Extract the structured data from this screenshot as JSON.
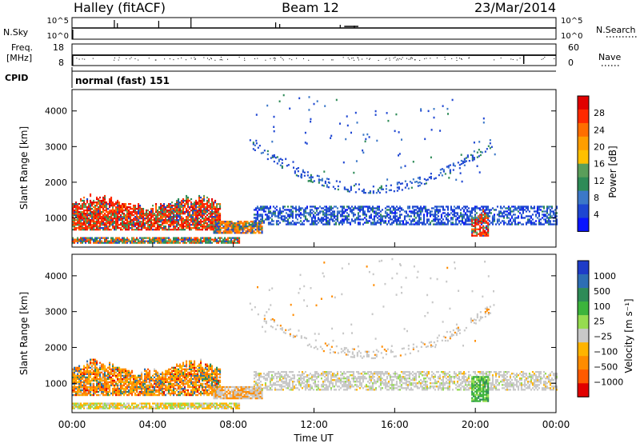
{
  "header": {
    "site": "Halley (fitACF)",
    "beam": "Beam 12",
    "date": "23/Mar/2014"
  },
  "noise_panel": {
    "left_label": "N.Sky",
    "right_label": "N.Search",
    "ticks": [
      "10^5",
      "10^0"
    ],
    "series": [
      {
        "name": "N.Sky",
        "style": "solid"
      },
      {
        "name": "N.Search",
        "style": "dotted"
      }
    ]
  },
  "freq_panel": {
    "left_label_line1": "Freq.",
    "left_label_line2": "[MHz]",
    "left_ticks": [
      "18",
      "8"
    ],
    "right_label": "Nave",
    "right_ticks": [
      "60",
      "0"
    ],
    "series": [
      {
        "name": "Freq.",
        "style": "solid"
      },
      {
        "name": "Nave",
        "style": "dotted"
      }
    ]
  },
  "cpid_panel": {
    "label": "CPID",
    "text": "normal (fast) 151"
  },
  "chart_data": [
    {
      "type": "heatmap",
      "ylabel": "Slant Range [km]",
      "xlabel": "",
      "ylim": [
        180,
        4600
      ],
      "yticks": [
        1000,
        2000,
        3000,
        4000
      ],
      "xticks_hours": [
        0,
        4,
        8,
        12,
        16,
        20,
        24
      ],
      "colorbar": {
        "label": "Power [dB]",
        "ticks": [
          "28",
          "24",
          "20",
          "16",
          "12",
          "8",
          "4"
        ],
        "colors": [
          "#e10000",
          "#ff2a00",
          "#ff6e00",
          "#ff9e00",
          "#ffc000",
          "#5a9e5a",
          "#2e8b57",
          "#3c78c8",
          "#1e46d2",
          "#0a14ff"
        ]
      },
      "regions": [
        {
          "h": [
            0.0,
            7.3
          ],
          "r": [
            650,
            1650
          ],
          "c": "mixed_power_high"
        },
        {
          "h": [
            0.0,
            8.3
          ],
          "r": [
            280,
            460
          ],
          "c": "mixed_power_low"
        },
        {
          "h": [
            7.0,
            9.4
          ],
          "r": [
            560,
            900
          ],
          "c": "mixed_power_mid"
        },
        {
          "h": [
            9.0,
            24.0
          ],
          "r": [
            800,
            1300
          ],
          "c": "blue"
        },
        {
          "h": [
            8.8,
            20.8
          ],
          "r": [
            1700,
            3300
          ],
          "c": "blue_arc"
        },
        {
          "h": [
            19.8,
            20.6
          ],
          "r": [
            480,
            1200
          ],
          "c": "mixed_power_high"
        }
      ]
    },
    {
      "type": "heatmap",
      "ylabel": "Slant Range [km]",
      "xlabel": "Time UT",
      "ylim": [
        180,
        4600
      ],
      "yticks": [
        1000,
        2000,
        3000,
        4000
      ],
      "xticks": [
        "00:00",
        "04:00",
        "08:00",
        "12:00",
        "16:00",
        "20:00",
        "00:00"
      ],
      "colorbar": {
        "label": "Velocity [m s⁻¹]",
        "ticks": [
          "1000",
          "500",
          "100",
          "25",
          "−25",
          "−100",
          "−500",
          "−1000"
        ],
        "colors": [
          "#1e3cc8",
          "#2d6eb4",
          "#2e8b57",
          "#3cb43c",
          "#96dc50",
          "#c8c8c8",
          "#ffb400",
          "#ff8c00",
          "#ff5a00",
          "#e10000"
        ]
      },
      "regions": [
        {
          "h": [
            0.0,
            7.3
          ],
          "r": [
            650,
            1650
          ],
          "c": "mixed_velocity_neg"
        },
        {
          "h": [
            0.0,
            8.3
          ],
          "r": [
            280,
            460
          ],
          "c": "mixed_velocity_low"
        },
        {
          "h": [
            7.0,
            9.4
          ],
          "r": [
            560,
            900
          ],
          "c": "grey_orange"
        },
        {
          "h": [
            9.0,
            24.0
          ],
          "r": [
            800,
            1300
          ],
          "c": "grey"
        },
        {
          "h": [
            8.8,
            20.8
          ],
          "r": [
            1700,
            3300
          ],
          "c": "grey_arc"
        },
        {
          "h": [
            19.8,
            20.6
          ],
          "r": [
            480,
            1200
          ],
          "c": "green"
        }
      ]
    }
  ]
}
